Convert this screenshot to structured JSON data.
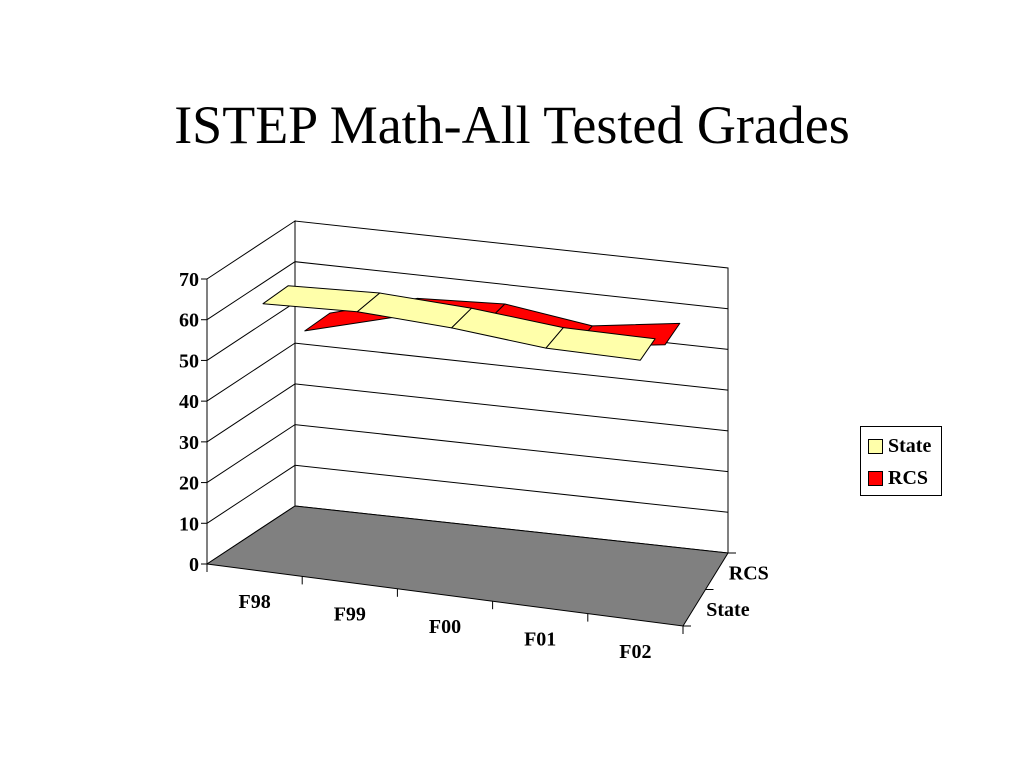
{
  "title": "ISTEP Math-All Tested Grades",
  "chart_data": {
    "type": "line",
    "projection": "3d",
    "categories": [
      "F98",
      "F99",
      "F00",
      "F01",
      "F02"
    ],
    "depth_categories": [
      "State",
      "RCS"
    ],
    "series": [
      {
        "name": "State",
        "values": [
          64,
          65,
          64,
          62,
          62
        ],
        "color": "#ffffaa"
      },
      {
        "name": "RCS",
        "values": [
          50,
          56,
          57,
          54,
          57
        ],
        "color": "#ff0000"
      }
    ],
    "ylim": [
      0,
      70
    ],
    "yticks": [
      0,
      10,
      20,
      30,
      40,
      50,
      60,
      70
    ],
    "grid": true,
    "floor_color": "#808080",
    "legend_position": "right"
  },
  "legend": {
    "items": [
      {
        "label": "State",
        "color": "#ffffaa"
      },
      {
        "label": "RCS",
        "color": "#ff0000"
      }
    ]
  }
}
